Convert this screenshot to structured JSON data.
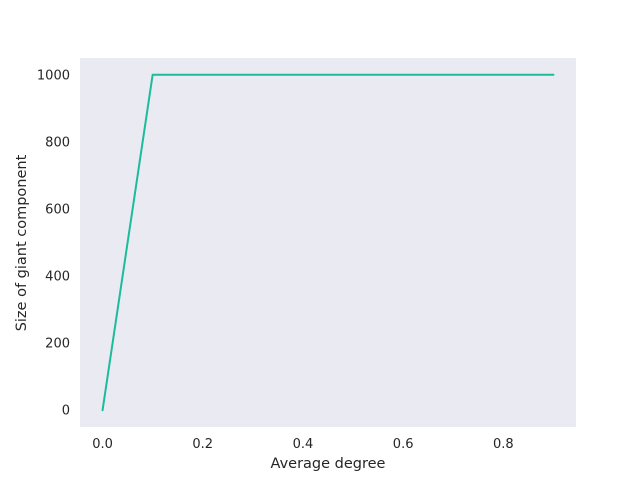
{
  "chart_data": {
    "type": "line",
    "title": "",
    "xlabel": "Average degree",
    "ylabel": "Size of giant component",
    "xlim": [
      -0.045,
      0.945
    ],
    "ylim": [
      -50,
      1050
    ],
    "xticks": [
      0.0,
      0.2,
      0.4,
      0.6,
      0.8
    ],
    "xtick_labels": [
      "0.0",
      "0.2",
      "0.4",
      "0.6",
      "0.8"
    ],
    "yticks": [
      0,
      200,
      400,
      600,
      800,
      1000
    ],
    "ytick_labels": [
      "0",
      "200",
      "400",
      "600",
      "800",
      "1000"
    ],
    "grid": false,
    "legend": "none",
    "background_color": "#eaeaf2",
    "series": [
      {
        "color": "#1abc9c",
        "x": [
          0.0,
          0.1,
          0.2,
          0.3,
          0.4,
          0.5,
          0.6,
          0.7,
          0.8,
          0.9
        ],
        "y": [
          0,
          1000,
          1000,
          1000,
          1000,
          1000,
          1000,
          1000,
          1000,
          1000
        ]
      }
    ]
  }
}
